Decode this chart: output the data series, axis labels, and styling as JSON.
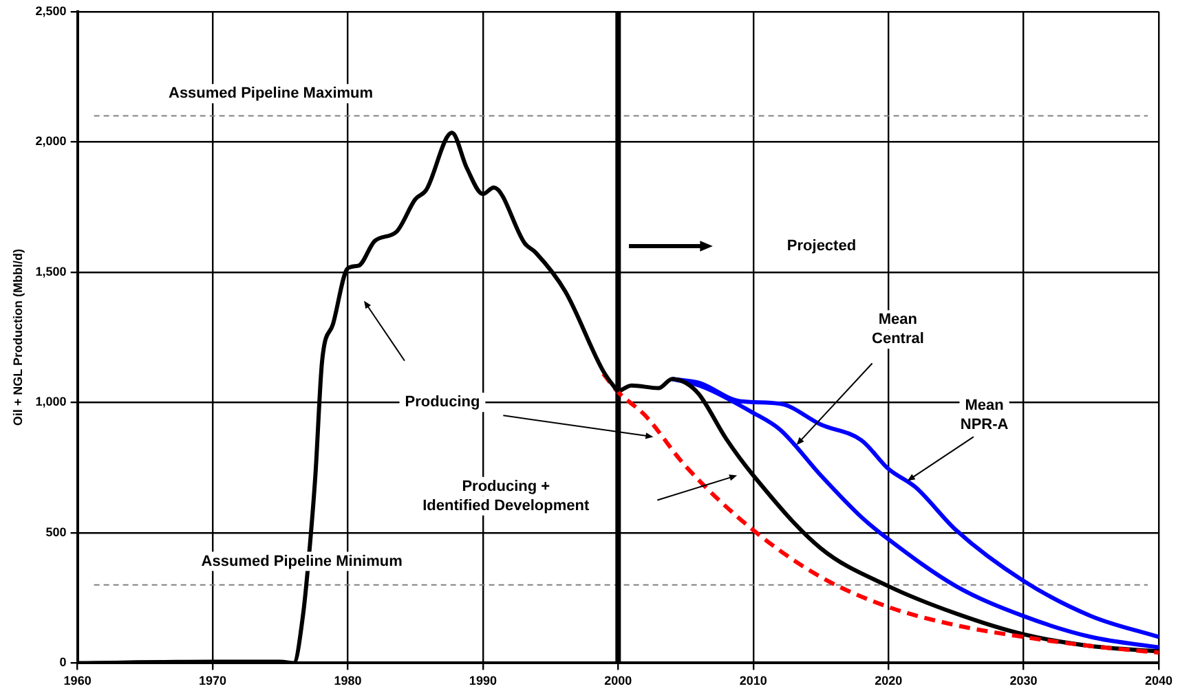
{
  "chart_data": {
    "type": "line",
    "ylabel": "Oil + NGL Production (Mbbl/d)",
    "xlim": [
      1960,
      2040
    ],
    "xticks": [
      1960,
      1970,
      1980,
      1990,
      2000,
      2010,
      2020,
      2030,
      2040
    ],
    "ylim": [
      0,
      2500
    ],
    "yticks": [
      0,
      500,
      {
        "value": 1000,
        "label": "1,000"
      },
      {
        "value": 1500,
        "label": "1,500"
      },
      {
        "value": 2000,
        "label": "2,000"
      },
      {
        "value": 2500,
        "label": "2,500"
      }
    ],
    "grid": true,
    "legend": false,
    "marker": "none",
    "series": [
      {
        "color": "#000000",
        "line_style": "solid",
        "x": [
          1960,
          1970,
          1975,
          1976,
          1976.7,
          1977.2,
          1977.6,
          1978.1,
          1978.9,
          1980,
          1980.8,
          1982,
          1983.6,
          1985,
          1985.8,
          1987.7,
          1988.8,
          1990,
          1990.8,
          1993.1,
          1993.9,
          1996.1,
          1998.9,
          2000
        ],
        "values": [
          0,
          5,
          5,
          0,
          190,
          455,
          720,
          1160,
          1300,
          1515,
          1525,
          1620,
          1655,
          1780,
          1815,
          2035,
          1900,
          1800,
          1825,
          1610,
          1575,
          1425,
          1120,
          1040
        ]
      },
      {
        "color": "#ff0000",
        "line_style": "dashed",
        "x": [
          1998.9,
          2000,
          2002,
          2005,
          2010,
          2015,
          2020,
          2025,
          2030,
          2035,
          2040
        ],
        "values": [
          1110,
          1040,
          950,
          755,
          510,
          330,
          215,
          145,
          100,
          65,
          40
        ]
      },
      {
        "color": "#000000",
        "line_style": "solid",
        "x": [
          2000,
          2001,
          2003,
          2004,
          2005,
          2006,
          2008,
          2010,
          2015,
          2020,
          2025,
          2030,
          2035,
          2040
        ],
        "values": [
          1040,
          1065,
          1055,
          1090,
          1075,
          1030,
          860,
          720,
          440,
          295,
          190,
          110,
          65,
          45
        ]
      },
      {
        "color": "#0000ff",
        "line_style": "solid",
        "x": [
          2004,
          2006,
          2010,
          2012,
          2015,
          2018,
          2020,
          2025,
          2030,
          2035,
          2040
        ],
        "values": [
          1090,
          1065,
          960,
          895,
          720,
          560,
          475,
          295,
          180,
          100,
          60
        ]
      },
      {
        "color": "#0000ff",
        "line_style": "solid",
        "x": [
          2004,
          2006,
          2009,
          2012,
          2015,
          2018,
          2020,
          2022,
          2025,
          2030,
          2035,
          2040
        ],
        "values": [
          1090,
          1075,
          1005,
          995,
          915,
          855,
          745,
          675,
          510,
          315,
          180,
          100
        ]
      }
    ],
    "ref_lines": [
      {
        "axis": "y",
        "value": 2100,
        "label": "Assumed Pipeline Maximum",
        "color": "#808080",
        "line_style": "dashed"
      },
      {
        "axis": "y",
        "value": 300,
        "label": "Assumed Pipeline Minimum",
        "color": "#808080",
        "line_style": "dashed"
      },
      {
        "axis": "x",
        "value": 2000,
        "color": "#000000",
        "line_style": "solid"
      }
    ],
    "annotations": [
      "Projected",
      "Producing",
      "Producing + Identified Development",
      {
        "text": "Mean Central",
        "x": 2013.2,
        "y": 837
      },
      {
        "text": "Mean NPR-A",
        "x": 2021.4,
        "y": 699
      }
    ]
  }
}
